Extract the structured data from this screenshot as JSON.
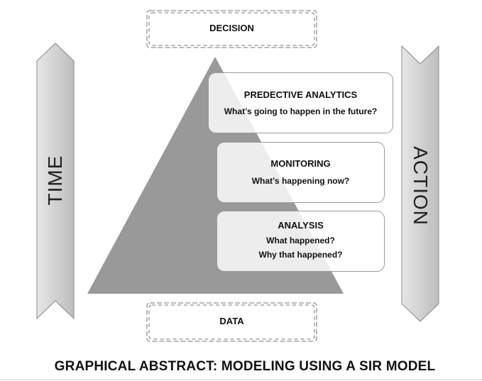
{
  "decision_label": "DECISION",
  "data_label": "DATA",
  "time_label": "TIME",
  "action_label": "ACTION",
  "cards": [
    {
      "title": "PREDECTIVE ANALYTICS",
      "lines": [
        "What’s going to happen in the future?"
      ]
    },
    {
      "title": "MONITORING",
      "lines": [
        "What’s happening now?"
      ]
    },
    {
      "title": "ANALYSIS",
      "lines": [
        "What happened?",
        "Why that happened?"
      ]
    }
  ],
  "caption": "GRAPHICAL ABSTRACT: MODELING USING A SIR MODEL",
  "colors": {
    "triangle": "#999999",
    "ribbon_fill": "#d6d6d6",
    "ribbon_stroke": "#888888",
    "dash": "#777777"
  }
}
